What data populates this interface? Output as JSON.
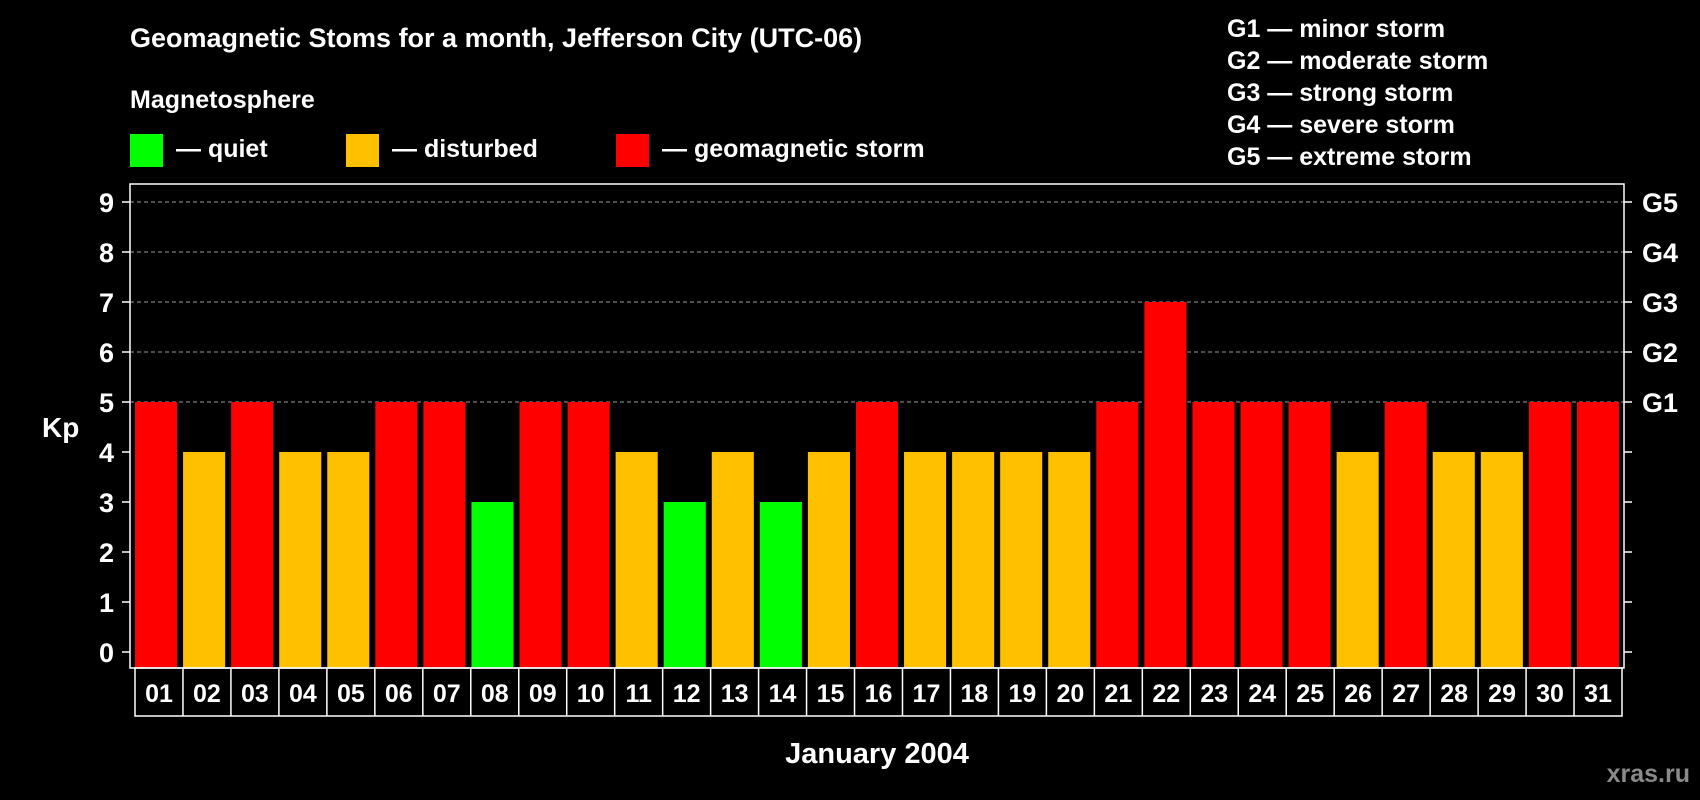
{
  "chart_data": {
    "type": "bar",
    "title": "Geomagnetic Stoms for a month, Jefferson City (UTC-06)",
    "legend_title": "Magnetosphere",
    "legend": [
      {
        "color": "#00ff00",
        "label": "— quiet"
      },
      {
        "color": "#ffc000",
        "label": "— disturbed"
      },
      {
        "color": "#ff0000",
        "label": "— geomagnetic storm"
      }
    ],
    "storm_scale": [
      "G1 — minor storm",
      "G2 — moderate storm",
      "G3 — strong storm",
      "G4 — severe storm",
      "G5 — extreme storm"
    ],
    "xlabel": "January 2004",
    "ylabel": "Kp",
    "ylim": [
      0,
      9
    ],
    "yticks": [
      "0",
      "1",
      "2",
      "3",
      "4",
      "5",
      "6",
      "7",
      "8",
      "9"
    ],
    "right_ticks": [
      {
        "kp": 5,
        "label": "G1"
      },
      {
        "kp": 6,
        "label": "G2"
      },
      {
        "kp": 7,
        "label": "G3"
      },
      {
        "kp": 8,
        "label": "G4"
      },
      {
        "kp": 9,
        "label": "G5"
      }
    ],
    "categories": [
      "01",
      "02",
      "03",
      "04",
      "05",
      "06",
      "07",
      "08",
      "09",
      "10",
      "11",
      "12",
      "13",
      "14",
      "15",
      "16",
      "17",
      "18",
      "19",
      "20",
      "21",
      "22",
      "23",
      "24",
      "25",
      "26",
      "27",
      "28",
      "29",
      "30",
      "31"
    ],
    "values": [
      5,
      4,
      5,
      4,
      4,
      5,
      5,
      3,
      5,
      5,
      4,
      3,
      4,
      3,
      4,
      5,
      4,
      4,
      4,
      4,
      5,
      7,
      5,
      5,
      5,
      4,
      5,
      4,
      4,
      5,
      5
    ],
    "colors": {
      "quiet": "#00ff00",
      "disturbed": "#ffc000",
      "storm": "#ff0000"
    },
    "grid": "dashed horizontal at Kp 5-9"
  },
  "watermark": "xras.ru"
}
